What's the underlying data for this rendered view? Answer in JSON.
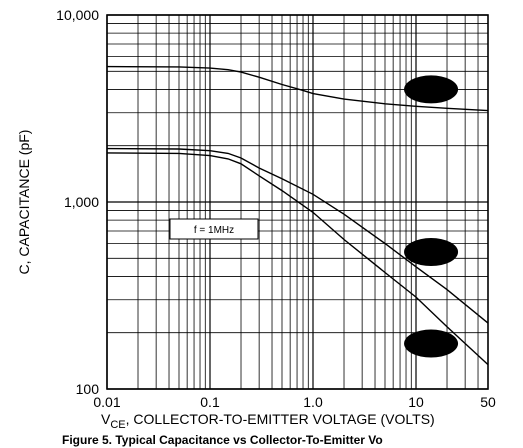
{
  "chart_data": {
    "type": "line",
    "title": "",
    "xlabel": {
      "main": "V",
      "sub": "CE",
      "rest": ", COLLECTOR-TO-EMITTER VOLTAGE (VOLTS)"
    },
    "ylabel": "C, CAPACITANCE (pF)",
    "caption": "Figure 5. Typical Capacitance vs Collector-To-Emitter Vo",
    "annotation": "f = 1MHz",
    "x_scale": "log",
    "y_scale": "log",
    "xlim": [
      0.01,
      50
    ],
    "ylim": [
      100,
      10000
    ],
    "x_tick_labels": [
      {
        "value": 0.01,
        "label": "0.01"
      },
      {
        "value": 0.1,
        "label": "0.1"
      },
      {
        "value": 1,
        "label": "1.0"
      },
      {
        "value": 10,
        "label": "10"
      },
      {
        "value": 50,
        "label": "50"
      }
    ],
    "y_tick_labels": [
      {
        "value": 10000,
        "label": "10,000"
      },
      {
        "value": 1000,
        "label": "1,000"
      },
      {
        "value": 100,
        "label": "100"
      }
    ],
    "grid": true,
    "series": [
      {
        "color": "#000000",
        "x": [
          0.01,
          0.05,
          0.1,
          0.15,
          0.2,
          0.3,
          0.5,
          0.8,
          1.0,
          2,
          5,
          10,
          20,
          50
        ],
        "y": [
          5300,
          5280,
          5200,
          5100,
          4950,
          4650,
          4250,
          3950,
          3800,
          3550,
          3350,
          3250,
          3170,
          3080
        ]
      },
      {
        "color": "#000000",
        "x": [
          0.01,
          0.05,
          0.1,
          0.15,
          0.2,
          0.3,
          0.5,
          1.0,
          2,
          5,
          10,
          20,
          50
        ],
        "y": [
          1930,
          1920,
          1880,
          1820,
          1720,
          1520,
          1330,
          1100,
          860,
          600,
          450,
          340,
          225
        ]
      },
      {
        "color": "#000000",
        "x": [
          0.01,
          0.05,
          0.1,
          0.15,
          0.2,
          0.3,
          0.5,
          1.0,
          2,
          5,
          10,
          20,
          50
        ],
        "y": [
          1830,
          1820,
          1770,
          1700,
          1600,
          1380,
          1150,
          880,
          630,
          420,
          310,
          215,
          135
        ]
      }
    ],
    "markers": [
      {
        "x": 14,
        "y": 4000,
        "color": "#000000"
      },
      {
        "x": 14,
        "y": 540,
        "color": "#000000"
      },
      {
        "x": 14,
        "y": 175,
        "color": "#000000"
      }
    ]
  }
}
